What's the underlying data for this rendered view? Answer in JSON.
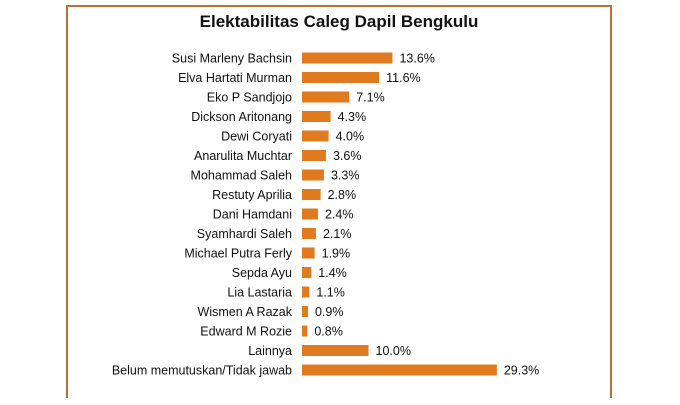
{
  "chart_data": {
    "type": "bar",
    "orientation": "horizontal",
    "title": "Elektabilitas Caleg Dapil Bengkulu",
    "categories": [
      "Susi Marleny Bachsin",
      "Elva Hartati Murman",
      "Eko P Sandjojo",
      "Dickson Aritonang",
      "Dewi Coryati",
      "Anarulita Muchtar",
      "Mohammad Saleh",
      "Restuty Aprilia",
      "Dani Hamdani",
      "Syamhardi Saleh",
      "Michael Putra Ferly",
      "Sepda Ayu",
      "Lia Lastaria",
      "Wismen A Razak",
      "Edward M Rozie",
      "Lainnya",
      "Belum memutuskan/Tidak jawab"
    ],
    "values": [
      13.6,
      11.6,
      7.1,
      4.3,
      4.0,
      3.6,
      3.3,
      2.8,
      2.4,
      2.1,
      1.9,
      1.4,
      1.1,
      0.9,
      0.8,
      10.0,
      29.3
    ],
    "value_labels": [
      "13.6%",
      "11.6%",
      "7.1%",
      "4.3%",
      "4.0%",
      "3.6%",
      "3.3%",
      "2.8%",
      "2.4%",
      "2.1%",
      "1.9%",
      "1.4%",
      "1.1%",
      "0.9%",
      "0.8%",
      "10.0%",
      "29.3%"
    ],
    "bar_color": "#e07a1f",
    "frame_color": "#b9703a",
    "grid": false,
    "legend": "none"
  }
}
